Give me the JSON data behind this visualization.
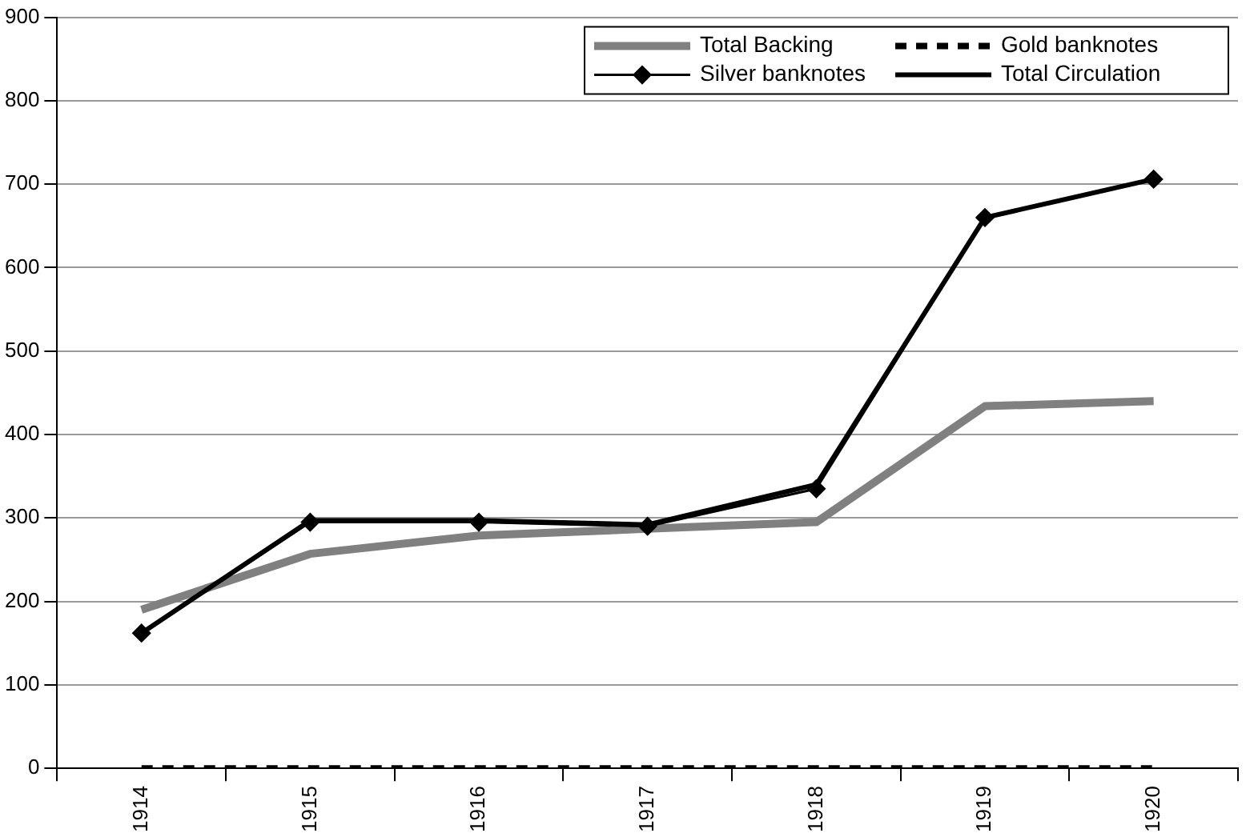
{
  "chart_data": {
    "type": "line",
    "categories": [
      "1914",
      "1915",
      "1916",
      "1917",
      "1918",
      "1919",
      "1920"
    ],
    "series": [
      {
        "name": "Total Backing",
        "color": "#808080",
        "values": [
          190,
          257,
          279,
          287,
          295,
          434,
          440
        ],
        "line_style": "solid",
        "marker": "none"
      },
      {
        "name": "Gold banknotes",
        "color": "#000000",
        "values": [
          0,
          0,
          0,
          0,
          0,
          0,
          0
        ],
        "line_style": "dashed",
        "marker": "none"
      },
      {
        "name": "Silver banknotes",
        "color": "#000000",
        "values": [
          162,
          295,
          295,
          290,
          335,
          660,
          706
        ],
        "line_style": "solid",
        "marker": "diamond"
      },
      {
        "name": "Total Circulation",
        "color": "#000000",
        "values": [
          162,
          297,
          297,
          292,
          340,
          660,
          706
        ],
        "line_style": "solid",
        "marker": "none"
      }
    ],
    "ylim": [
      0,
      900
    ],
    "yticks": [
      0,
      100,
      200,
      300,
      400,
      500,
      600,
      700,
      800,
      900
    ],
    "grid": "y",
    "legend": "top right"
  }
}
